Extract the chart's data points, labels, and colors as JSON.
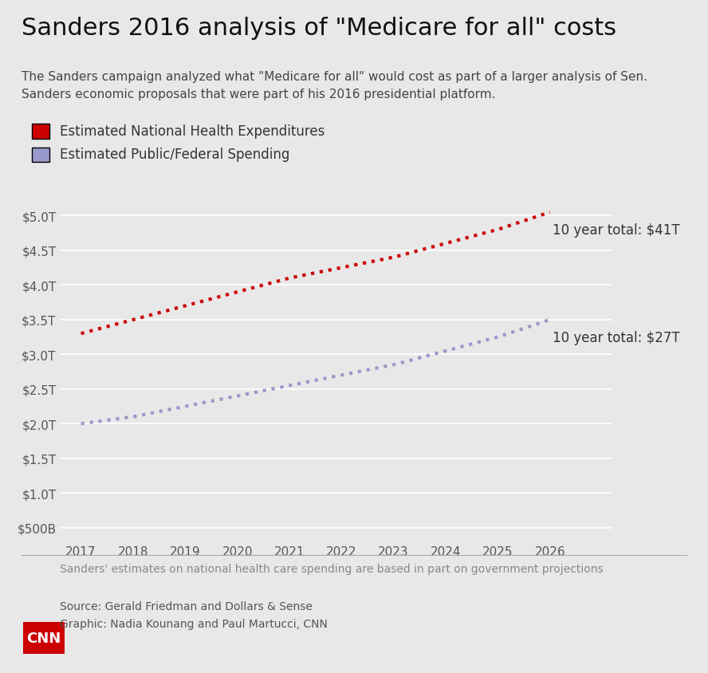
{
  "title": "Sanders 2016 analysis of \"Medicare for all\" costs",
  "subtitle": "The Sanders campaign analyzed what \"Medicare for all\" would cost as part of a larger analysis of Sen.\nSanders economic proposals that were part of his 2016 presidential platform.",
  "legend_label_red": "Estimated National Health Expenditures",
  "legend_label_blue": "Estimated Public/Federal Spending",
  "years": [
    2017,
    2018,
    2019,
    2020,
    2021,
    2022,
    2023,
    2024,
    2025,
    2026
  ],
  "red_values": [
    3.3,
    3.5,
    3.7,
    3.9,
    4.1,
    4.25,
    4.4,
    4.6,
    4.8,
    5.05
  ],
  "blue_values": [
    2.0,
    2.1,
    2.25,
    2.4,
    2.55,
    2.7,
    2.85,
    3.05,
    3.25,
    3.5
  ],
  "red_color": "#cc0000",
  "blue_color": "#9999cc",
  "red_label": "10 year total: $41T",
  "blue_label": "10 year total: $27T",
  "yticks": [
    0.5,
    1.0,
    1.5,
    2.0,
    2.5,
    3.0,
    3.5,
    4.0,
    4.5,
    5.0
  ],
  "ytick_labels": [
    "$500B",
    "$1.0T",
    "$1.5T",
    "$2.0T",
    "$2.5T",
    "$3.0T",
    "$3.5T",
    "$4.0T",
    "$4.5T",
    "$5.0T"
  ],
  "ylim": [
    0.3,
    5.4
  ],
  "xlim": [
    2016.6,
    2027.2
  ],
  "background_color": "#e8e8e8",
  "plot_bg_color": "#e8e8e8",
  "footnote": "Sanders' estimates on national health care spending are based in part on government projections",
  "source_line1": "Source: Gerald Friedman and Dollars & Sense",
  "source_line2": "Graphic: Nadia Kounang and Paul Martucci, CNN",
  "title_fontsize": 22,
  "subtitle_fontsize": 11,
  "axis_fontsize": 11,
  "annotation_fontsize": 12,
  "legend_fontsize": 12,
  "footnote_fontsize": 10,
  "source_fontsize": 10,
  "cnn_red": "#cc0000"
}
